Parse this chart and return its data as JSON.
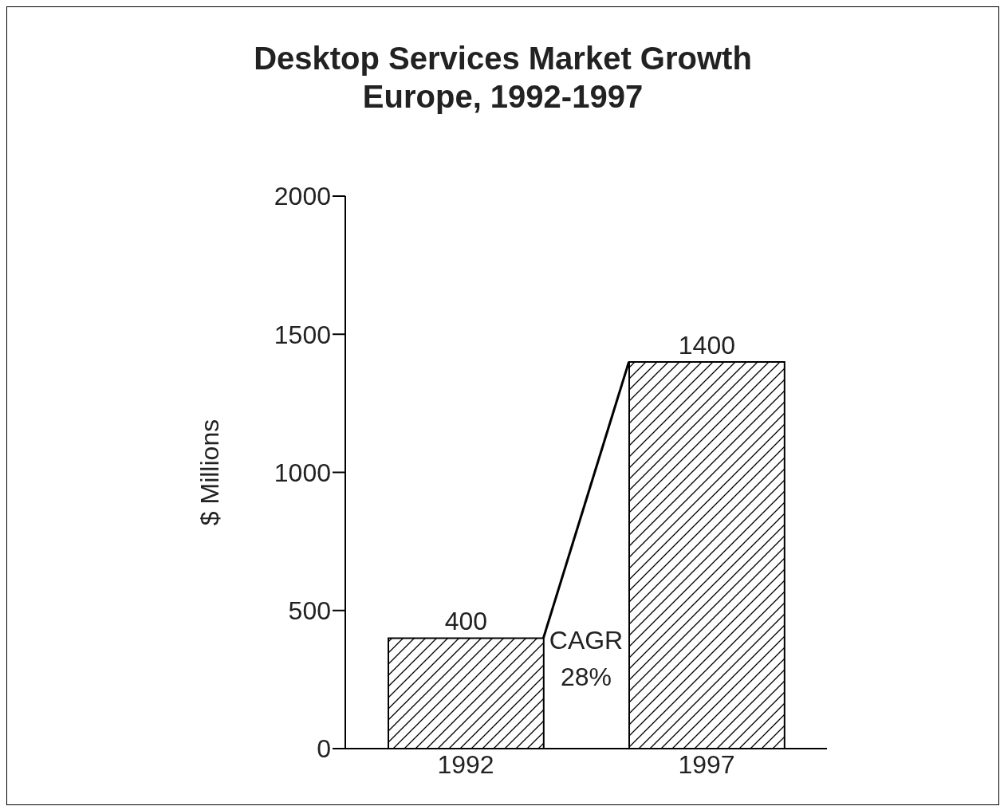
{
  "chart_data": {
    "type": "bar",
    "title": "Desktop Services Market Growth\nEurope, 1992-1997",
    "ylabel": "$ Millions",
    "categories": [
      "1992",
      "1997"
    ],
    "values": [
      400,
      1400
    ],
    "color": "#000000",
    "ylim": [
      0,
      2000
    ],
    "yticks": [
      0,
      500,
      1000,
      1500,
      2000
    ],
    "data_labels": true,
    "annotations": [
      "CAGR 28%"
    ]
  }
}
